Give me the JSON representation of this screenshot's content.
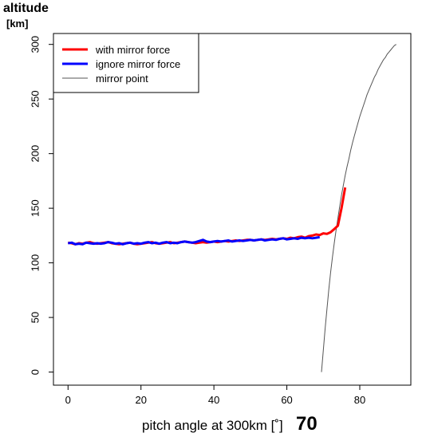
{
  "chart_data": {
    "type": "line",
    "ylabel": "altitude",
    "yunit": "[km]",
    "xlabel": "pitch angle at 300km [˚]",
    "annotation": "70",
    "xlim": [
      -4,
      94
    ],
    "ylim": [
      -12,
      310
    ],
    "xticks": [
      0,
      20,
      40,
      60,
      80
    ],
    "yticks": [
      0,
      50,
      100,
      150,
      200,
      250,
      300
    ],
    "legend_position": "top-left",
    "grid": false,
    "series": [
      {
        "name": "with mirror force",
        "color": "#ff0000",
        "x": [
          0,
          1,
          2,
          3,
          4,
          5,
          6,
          7,
          8,
          9,
          10,
          11,
          12,
          13,
          14,
          15,
          16,
          17,
          18,
          19,
          20,
          21,
          22,
          23,
          24,
          25,
          26,
          27,
          28,
          29,
          30,
          31,
          32,
          33,
          34,
          35,
          36,
          37,
          38,
          39,
          40,
          41,
          42,
          43,
          44,
          45,
          46,
          47,
          48,
          49,
          50,
          51,
          52,
          53,
          54,
          55,
          56,
          57,
          58,
          59,
          60,
          61,
          62,
          63,
          64,
          65,
          66,
          67,
          68,
          69,
          70,
          71,
          72,
          73,
          74,
          75,
          76
        ],
        "y": [
          118.5,
          118,
          117,
          118,
          117.5,
          118.5,
          119,
          118,
          117.5,
          118,
          118.5,
          119,
          118,
          117.5,
          117,
          117.5,
          118,
          118.5,
          117.5,
          117,
          117.5,
          118,
          118.5,
          119,
          118,
          117.5,
          118,
          118.5,
          119,
          118,
          118.5,
          119,
          119.5,
          119,
          118.5,
          118,
          118.5,
          119,
          118.5,
          119,
          119.5,
          119,
          119.5,
          120,
          119.5,
          120,
          120.5,
          120,
          120.5,
          121,
          121,
          120.5,
          121,
          121.5,
          121,
          121.5,
          122,
          121.5,
          122,
          122.5,
          122,
          123,
          122.5,
          123.5,
          124,
          123,
          124.5,
          125,
          126,
          125.5,
          127,
          126.5,
          128,
          131,
          134,
          150,
          169
        ]
      },
      {
        "name": "ignore mirror force",
        "color": "#0000ff",
        "x": [
          0,
          1,
          2,
          3,
          4,
          5,
          6,
          7,
          8,
          9,
          10,
          11,
          12,
          13,
          14,
          15,
          16,
          17,
          18,
          19,
          20,
          21,
          22,
          23,
          24,
          25,
          26,
          27,
          28,
          29,
          30,
          31,
          32,
          33,
          34,
          35,
          36,
          37,
          38,
          39,
          40,
          41,
          42,
          43,
          44,
          45,
          46,
          47,
          48,
          49,
          50,
          51,
          52,
          53,
          54,
          55,
          56,
          57,
          58,
          59,
          60,
          61,
          62,
          63,
          64,
          65,
          66,
          67,
          68,
          69
        ],
        "y": [
          118,
          118.5,
          117,
          117.5,
          117,
          118.5,
          118,
          117.5,
          118,
          117.5,
          118,
          119,
          118.5,
          117.5,
          118,
          117,
          118,
          118.5,
          117.5,
          118,
          117.5,
          118.5,
          119,
          118,
          118.5,
          117.5,
          118.5,
          119,
          118,
          118.5,
          118,
          119,
          119.5,
          119,
          118.5,
          119,
          120,
          121,
          119.5,
          119,
          119.5,
          120,
          119.5,
          120,
          120.5,
          119.5,
          120,
          120.5,
          120,
          120.5,
          121,
          120.5,
          121,
          121.5,
          120.5,
          121,
          121.5,
          121,
          122,
          122.5,
          121.5,
          122,
          122.5,
          122,
          123,
          122.5,
          123,
          122.5,
          123,
          123.5
        ]
      },
      {
        "name": "mirror point",
        "color": "#555555",
        "x": [
          69.5,
          70,
          70.5,
          71,
          71.5,
          72,
          72.5,
          73,
          73.5,
          74,
          74.5,
          75,
          75.5,
          76,
          76.5,
          77,
          77.5,
          78,
          78.5,
          79,
          79.5,
          80,
          80.5,
          81,
          81.5,
          82,
          82.5,
          83,
          83.5,
          84,
          84.5,
          85,
          85.5,
          86,
          86.5,
          87,
          87.5,
          88,
          88.5,
          89,
          89.5,
          90
        ],
        "y": [
          0,
          20,
          40,
          58,
          75,
          91,
          105,
          118,
          130,
          141,
          152,
          162,
          171,
          180,
          188,
          195,
          203,
          210,
          216,
          222,
          228,
          234,
          239,
          244,
          249,
          254,
          258,
          262,
          266,
          270,
          273,
          277,
          280,
          283,
          286,
          288,
          291,
          293,
          295,
          297,
          299,
          300
        ]
      }
    ]
  }
}
